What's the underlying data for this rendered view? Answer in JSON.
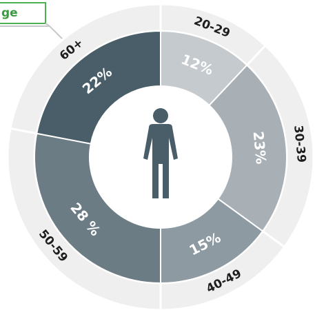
{
  "chart_data": {
    "type": "donut",
    "title": "ge",
    "categories": [
      "20-29",
      "30-39",
      "40-49",
      "50-59",
      "60+"
    ],
    "values": [
      12,
      23,
      15,
      28,
      22
    ],
    "value_labels": [
      "12%",
      "23%",
      "15%",
      "28 %",
      "22%"
    ],
    "colors": [
      "#c4cace",
      "#a8b0b6",
      "#8e9aa1",
      "#6c7c85",
      "#4a5e6a"
    ]
  }
}
